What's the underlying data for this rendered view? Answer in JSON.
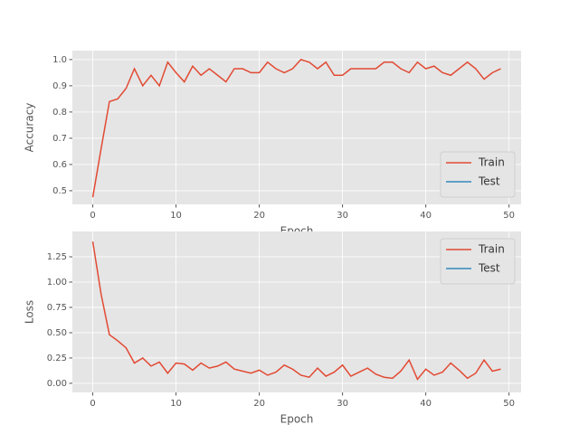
{
  "chart_data": [
    {
      "type": "line",
      "ylabel": "Accuracy",
      "xlabel": "Epoch",
      "x": [
        0,
        1,
        2,
        3,
        4,
        5,
        6,
        7,
        8,
        9,
        10,
        11,
        12,
        13,
        14,
        15,
        16,
        17,
        18,
        19,
        20,
        21,
        22,
        23,
        24,
        25,
        26,
        27,
        28,
        29,
        30,
        31,
        32,
        33,
        34,
        35,
        36,
        37,
        38,
        39,
        40,
        41,
        42,
        43,
        44,
        45,
        46,
        47,
        48,
        49
      ],
      "series": [
        {
          "name": "Train",
          "color": "#E24A33",
          "values": [
            0.475,
            0.66,
            0.84,
            0.85,
            0.89,
            0.965,
            0.9,
            0.94,
            0.9,
            0.99,
            0.95,
            0.915,
            0.975,
            0.94,
            0.965,
            0.94,
            0.915,
            0.965,
            0.965,
            0.95,
            0.95,
            0.99,
            0.965,
            0.95,
            0.965,
            1.0,
            0.99,
            0.965,
            0.99,
            0.94,
            0.94,
            0.965,
            0.965,
            0.965,
            0.965,
            0.99,
            0.99,
            0.965,
            0.95,
            0.99,
            0.965,
            0.975,
            0.95,
            0.94,
            0.965,
            0.99,
            0.965,
            0.925,
            0.95,
            0.965
          ]
        },
        {
          "name": "Test",
          "color": "#348ABD",
          "values": [
            null,
            null,
            null,
            null,
            null,
            null,
            null,
            null,
            null,
            null,
            null,
            null,
            null,
            null,
            null,
            null,
            null,
            null,
            null,
            null,
            null,
            null,
            null,
            null,
            null,
            null,
            null,
            null,
            null,
            null,
            null,
            null,
            null,
            null,
            null,
            null,
            null,
            null,
            null,
            null,
            null,
            null,
            null,
            null,
            null,
            null,
            null,
            null,
            null,
            null
          ]
        }
      ],
      "xlim": [
        -2.45,
        51.45
      ],
      "xticks": [
        0,
        10,
        20,
        30,
        40,
        50
      ],
      "ylim": [
        0.448,
        1.034
      ],
      "yticks": [
        0.5,
        0.6,
        0.7,
        0.8,
        0.9,
        {
          "value": 1.0,
          "label": "1.0"
        }
      ],
      "grid": true,
      "legend": "lower right"
    },
    {
      "type": "line",
      "ylabel": "Loss",
      "xlabel": "Epoch",
      "x": [
        0,
        1,
        2,
        3,
        4,
        5,
        6,
        7,
        8,
        9,
        10,
        11,
        12,
        13,
        14,
        15,
        16,
        17,
        18,
        19,
        20,
        21,
        22,
        23,
        24,
        25,
        26,
        27,
        28,
        29,
        30,
        31,
        32,
        33,
        34,
        35,
        36,
        37,
        38,
        39,
        40,
        41,
        42,
        43,
        44,
        45,
        46,
        47,
        48,
        49
      ],
      "series": [
        {
          "name": "Train",
          "color": "#E24A33",
          "values": [
            1.4,
            0.88,
            0.48,
            0.42,
            0.35,
            0.2,
            0.25,
            0.17,
            0.21,
            0.1,
            0.2,
            0.19,
            0.13,
            0.2,
            0.15,
            0.17,
            0.21,
            0.14,
            0.12,
            0.1,
            0.13,
            0.08,
            0.11,
            0.18,
            0.14,
            0.08,
            0.06,
            0.15,
            0.07,
            0.11,
            0.18,
            0.07,
            0.11,
            0.15,
            0.09,
            0.06,
            0.05,
            0.12,
            0.23,
            0.04,
            0.14,
            0.08,
            0.11,
            0.2,
            0.13,
            0.05,
            0.1,
            0.23,
            0.12,
            0.14
          ]
        },
        {
          "name": "Test",
          "color": "#348ABD",
          "values": [
            null,
            null,
            null,
            null,
            null,
            null,
            null,
            null,
            null,
            null,
            null,
            null,
            null,
            null,
            null,
            null,
            null,
            null,
            null,
            null,
            null,
            null,
            null,
            null,
            null,
            null,
            null,
            null,
            null,
            null,
            null,
            null,
            null,
            null,
            null,
            null,
            null,
            null,
            null,
            null,
            null,
            null,
            null,
            null,
            null,
            null,
            null,
            null,
            null,
            null
          ]
        }
      ],
      "xlim": [
        -2.45,
        51.45
      ],
      "xticks": [
        0,
        10,
        20,
        30,
        40,
        50
      ],
      "ylim": [
        -0.09,
        1.5
      ],
      "yticks": [
        {
          "value": 0,
          "label": "0.00"
        },
        {
          "value": 0.25,
          "label": "0.25"
        },
        {
          "value": 0.5,
          "label": "0.50"
        },
        {
          "value": 0.75,
          "label": "0.75"
        },
        {
          "value": 1.0,
          "label": "1.00"
        },
        {
          "value": 1.25,
          "label": "1.25"
        }
      ],
      "grid": true,
      "legend": "upper right"
    }
  ]
}
